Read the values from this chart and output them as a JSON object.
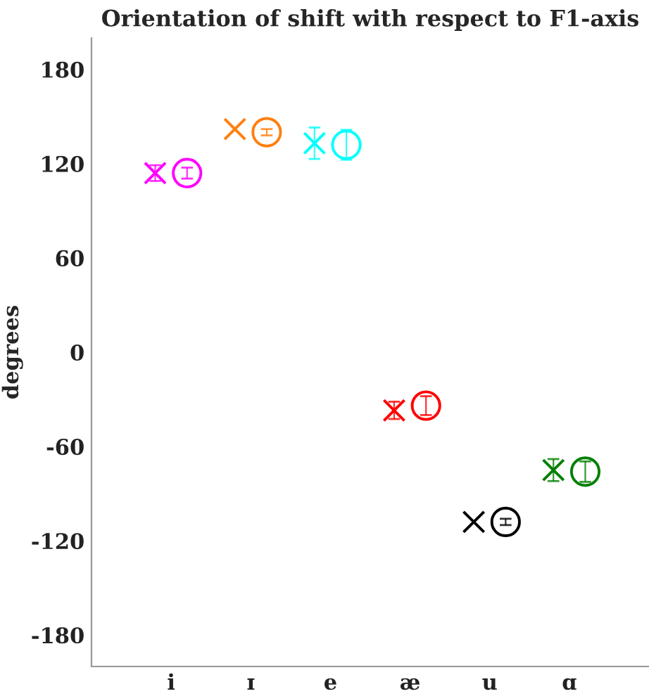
{
  "chart_data": {
    "type": "scatter",
    "title": "Orientation of shift with respect to F1-axis",
    "ylabel": "degrees",
    "categories": [
      "i",
      "ɪ",
      "e",
      "æ",
      "u",
      "ɑ"
    ],
    "series": [
      {
        "marker": "circle",
        "colors": [
          "#ff00ff",
          "#ff7f0e",
          "#00ffff",
          "#ff0000",
          "#000000",
          "#008000"
        ],
        "values": [
          114,
          140,
          132,
          -34,
          -108,
          -76
        ],
        "errors": [
          3.5,
          2,
          9.5,
          6,
          2,
          6.5
        ]
      },
      {
        "marker": "cross",
        "colors": [
          "#ff00ff",
          "#ff7f0e",
          "#00ffff",
          "#ff0000",
          "#000000",
          "#008000"
        ],
        "values": [
          114,
          142,
          133,
          -37,
          -108,
          -75
        ],
        "errors": [
          5,
          null,
          10,
          5.5,
          null,
          7
        ]
      }
    ],
    "ylim": [
      -200,
      200
    ],
    "yticks": [
      -180,
      -120,
      -60,
      0,
      60,
      120,
      180
    ],
    "grid": false,
    "legend": false
  }
}
